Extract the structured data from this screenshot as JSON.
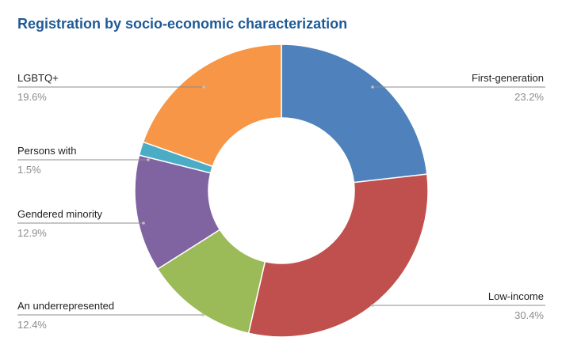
{
  "chart_data": {
    "type": "pie",
    "title": "Registration by socio-economic characterization",
    "donut": true,
    "legend": "none",
    "slices": [
      {
        "label": "First-generation",
        "value": 23.2,
        "value_label": "23.2%",
        "color": "#4f81bd"
      },
      {
        "label": "Low-income",
        "value": 30.4,
        "value_label": "30.4%",
        "color": "#c0504d"
      },
      {
        "label": "An underrepresented",
        "value": 12.4,
        "value_label": "12.4%",
        "color": "#9bbb59"
      },
      {
        "label": "Gendered minority",
        "value": 12.9,
        "value_label": "12.9%",
        "color": "#8064a2"
      },
      {
        "label": "Persons with",
        "value": 1.5,
        "value_label": "1.5%",
        "color": "#4bacc6"
      },
      {
        "label": "LGBTQ+",
        "value": 19.6,
        "value_label": "19.6%",
        "color": "#f79646"
      }
    ]
  }
}
